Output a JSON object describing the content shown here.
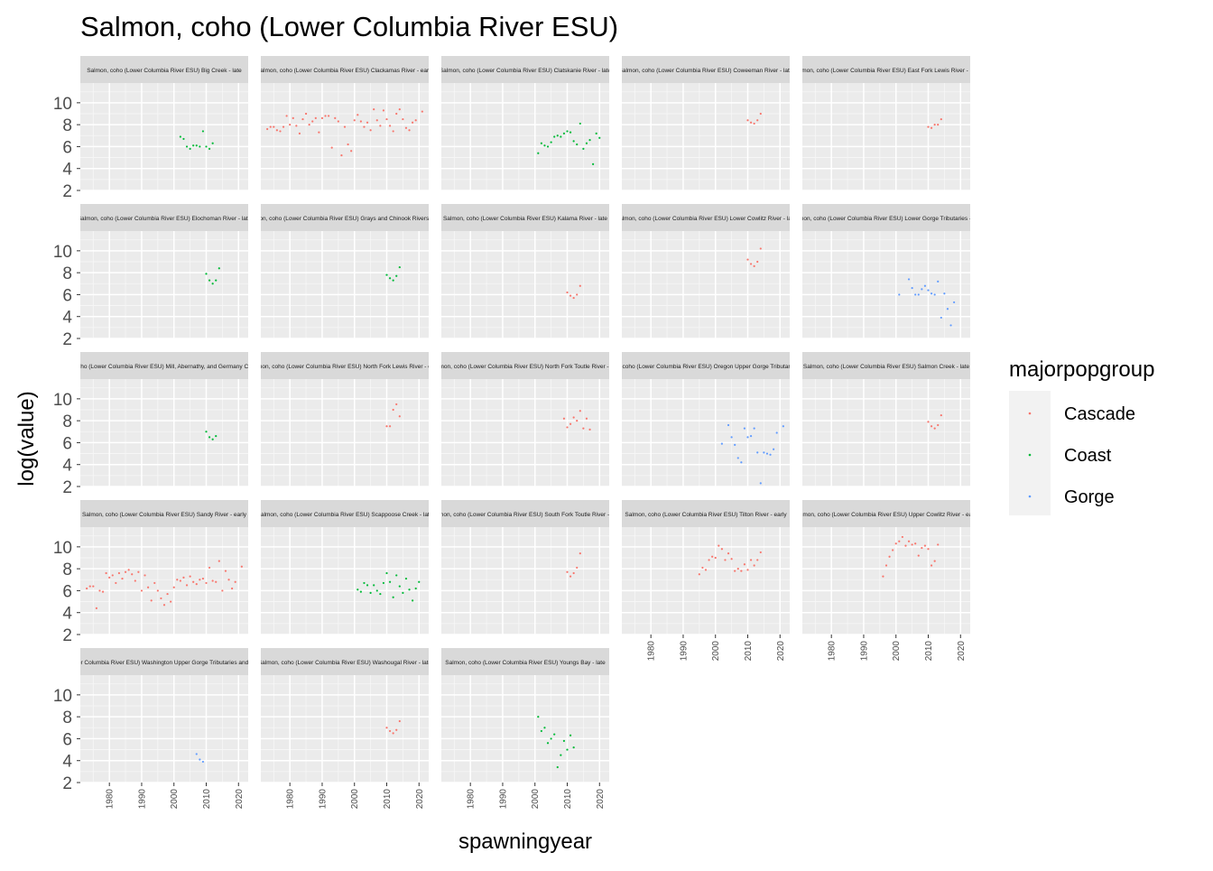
{
  "chart_data": {
    "type": "scatter",
    "title": "Salmon, coho (Lower Columbia River ESU)",
    "xlabel": "spawningyear",
    "ylabel": "log(value)",
    "xlim": [
      1971,
      2023
    ],
    "ylim": [
      2,
      11.8
    ],
    "xticks": [
      1980,
      1990,
      2000,
      2010,
      2020
    ],
    "yticks": [
      2,
      4,
      6,
      8,
      10
    ],
    "legend": {
      "title": "majorpopgroup",
      "position": "right",
      "entries": [
        {
          "name": "Cascade",
          "color": "#F8766D"
        },
        {
          "name": "Coast",
          "color": "#00BA38"
        },
        {
          "name": "Gorge",
          "color": "#619CFF"
        }
      ]
    },
    "facets": [
      {
        "label": "Salmon, coho (Lower Columbia River ESU) Big Creek - late",
        "group": "Coast",
        "x": [
          2002,
          2003,
          2004,
          2005,
          2006,
          2007,
          2008,
          2009,
          2010,
          2011,
          2012
        ],
        "y": [
          6.9,
          6.7,
          6.0,
          5.8,
          6.1,
          6.1,
          6.0,
          7.4,
          6.0,
          5.8,
          6.3
        ]
      },
      {
        "label": "Salmon, coho (Lower Columbia River ESU) Clackamas River - early",
        "group": "Cascade",
        "x": [
          1973,
          1974,
          1975,
          1976,
          1977,
          1978,
          1979,
          1980,
          1981,
          1982,
          1983,
          1984,
          1985,
          1986,
          1987,
          1988,
          1989,
          1990,
          1991,
          1992,
          1993,
          1994,
          1995,
          1996,
          1997,
          1998,
          1999,
          2000,
          2001,
          2002,
          2003,
          2004,
          2005,
          2006,
          2007,
          2008,
          2009,
          2010,
          2011,
          2012,
          2013,
          2014,
          2015,
          2016,
          2017,
          2018,
          2019,
          2021
        ],
        "y": [
          7.6,
          7.8,
          7.8,
          7.5,
          7.4,
          7.8,
          8.8,
          8.0,
          8.6,
          7.9,
          7.2,
          8.5,
          9.0,
          8.0,
          8.3,
          8.6,
          7.3,
          8.6,
          8.8,
          8.8,
          5.9,
          8.6,
          8.3,
          5.2,
          7.8,
          6.2,
          5.6,
          8.4,
          8.9,
          8.3,
          7.8,
          8.2,
          7.5,
          9.4,
          8.4,
          7.9,
          9.3,
          8.5,
          7.9,
          7.4,
          9.0,
          9.4,
          8.5,
          7.7,
          7.5,
          8.2,
          8.4,
          9.2
        ]
      },
      {
        "label": "Salmon, coho (Lower Columbia River ESU) Clatskanie River - late",
        "group": "Coast",
        "x": [
          2001,
          2002,
          2003,
          2004,
          2005,
          2006,
          2007,
          2008,
          2009,
          2010,
          2011,
          2012,
          2013,
          2014,
          2015,
          2016,
          2017,
          2018,
          2019,
          2020
        ],
        "y": [
          5.4,
          6.3,
          6.1,
          6.0,
          6.4,
          6.9,
          7.0,
          6.9,
          7.2,
          7.4,
          7.3,
          6.5,
          6.2,
          8.1,
          5.8,
          6.3,
          6.6,
          4.4,
          7.2,
          6.8
        ]
      },
      {
        "label": "Salmon, coho (Lower Columbia River ESU) Coweeman River - late",
        "group": "Cascade",
        "x": [
          2010,
          2011,
          2012,
          2013,
          2014
        ],
        "y": [
          8.4,
          8.2,
          8.1,
          8.4,
          9.0
        ]
      },
      {
        "label": "Salmon, coho (Lower Columbia River ESU) East Fork Lewis River - late",
        "group": "Cascade",
        "x": [
          2010,
          2011,
          2012,
          2013,
          2014
        ],
        "y": [
          7.8,
          7.7,
          8.0,
          8.0,
          8.5
        ]
      },
      {
        "label": "Salmon, coho (Lower Columbia River ESU) Elochoman River - late",
        "group": "Coast",
        "x": [
          2010,
          2011,
          2012,
          2013,
          2014
        ],
        "y": [
          7.9,
          7.3,
          7.0,
          7.3,
          8.4
        ]
      },
      {
        "label": "Salmon, coho (Lower Columbia River ESU) Grays and Chinook Rivers - late",
        "group": "Coast",
        "x": [
          2010,
          2011,
          2012,
          2013,
          2014
        ],
        "y": [
          7.8,
          7.5,
          7.3,
          7.7,
          8.5
        ]
      },
      {
        "label": "Salmon, coho (Lower Columbia River ESU) Kalama River - late",
        "group": "Cascade",
        "x": [
          2010,
          2011,
          2012,
          2013,
          2014
        ],
        "y": [
          6.2,
          5.9,
          5.7,
          6.0,
          6.8
        ]
      },
      {
        "label": "Salmon, coho (Lower Columbia River ESU) Lower Cowlitz River - late",
        "group": "Cascade",
        "x": [
          2010,
          2011,
          2012,
          2013,
          2014
        ],
        "y": [
          9.2,
          8.8,
          8.6,
          9.0,
          10.2
        ]
      },
      {
        "label": "Salmon, coho (Lower Columbia River ESU) Lower Gorge Tributaries - late",
        "group": "Gorge",
        "x": [
          2001,
          2004,
          2005,
          2006,
          2007,
          2008,
          2009,
          2010,
          2011,
          2012,
          2013,
          2014,
          2015,
          2016,
          2017,
          2018
        ],
        "y": [
          6.0,
          7.4,
          6.6,
          6.0,
          6.0,
          6.5,
          6.8,
          6.4,
          6.1,
          6.0,
          7.2,
          3.9,
          6.1,
          4.7,
          3.2,
          5.3
        ]
      },
      {
        "label": "Salmon, coho (Lower Columbia River ESU) Mill, Abernathy, and Germany Creeks - late",
        "group": "Coast",
        "x": [
          2010,
          2011,
          2012,
          2013
        ],
        "y": [
          7.0,
          6.5,
          6.3,
          6.6
        ]
      },
      {
        "label": "Salmon, coho (Lower Columbia River ESU) North Fork Lewis River - early",
        "group": "Cascade",
        "x": [
          2010,
          2011,
          2012,
          2013,
          2014
        ],
        "y": [
          7.5,
          7.5,
          9.0,
          9.5,
          8.4
        ]
      },
      {
        "label": "Salmon, coho (Lower Columbia River ESU) North Fork Toutle River - late",
        "group": "Cascade",
        "x": [
          2009,
          2010,
          2011,
          2012,
          2013,
          2014,
          2015,
          2016,
          2017
        ],
        "y": [
          8.2,
          7.4,
          7.7,
          8.3,
          8.0,
          8.9,
          7.3,
          8.2,
          7.2
        ]
      },
      {
        "label": "Salmon, coho (Lower Columbia River ESU) Oregon Upper Gorge Tributaries - late",
        "group": "Gorge",
        "x": [
          2002,
          2004,
          2005,
          2006,
          2007,
          2008,
          2009,
          2010,
          2011,
          2012,
          2013,
          2014,
          2015,
          2016,
          2017,
          2018,
          2019,
          2021
        ],
        "y": [
          5.9,
          7.6,
          6.5,
          5.8,
          4.6,
          4.2,
          7.3,
          6.5,
          6.6,
          7.3,
          5.1,
          2.3,
          5.1,
          5.0,
          4.9,
          5.4,
          6.9,
          7.5
        ]
      },
      {
        "label": "Salmon, coho (Lower Columbia River ESU) Salmon Creek - late",
        "group": "Cascade",
        "x": [
          2010,
          2011,
          2012,
          2013,
          2014
        ],
        "y": [
          7.9,
          7.5,
          7.3,
          7.6,
          8.5
        ]
      },
      {
        "label": "Salmon, coho (Lower Columbia River ESU) Sandy River - early",
        "group": "Cascade",
        "x": [
          1973,
          1974,
          1975,
          1976,
          1977,
          1978,
          1979,
          1980,
          1981,
          1982,
          1983,
          1984,
          1985,
          1986,
          1987,
          1988,
          1989,
          1990,
          1991,
          1992,
          1993,
          1994,
          1995,
          1996,
          1997,
          1998,
          1999,
          2000,
          2001,
          2002,
          2003,
          2004,
          2005,
          2006,
          2007,
          2008,
          2009,
          2010,
          2011,
          2012,
          2013,
          2014,
          2015,
          2016,
          2017,
          2018,
          2019,
          2021
        ],
        "y": [
          6.2,
          6.4,
          6.4,
          4.4,
          6.0,
          5.9,
          7.6,
          7.2,
          7.4,
          6.7,
          7.6,
          7.1,
          7.7,
          7.9,
          7.5,
          6.9,
          7.7,
          6.0,
          7.4,
          6.3,
          5.1,
          6.7,
          6.0,
          5.3,
          4.7,
          5.7,
          5.0,
          6.3,
          7.0,
          6.9,
          7.2,
          6.5,
          7.3,
          6.8,
          6.6,
          7.0,
          7.1,
          6.7,
          8.1,
          6.9,
          6.8,
          8.7,
          6.0,
          7.8,
          7.0,
          6.2,
          6.8,
          8.2
        ]
      },
      {
        "label": "Salmon, coho (Lower Columbia River ESU) Scappoose Creek - late",
        "group": "Coast",
        "x": [
          2001,
          2002,
          2003,
          2004,
          2005,
          2006,
          2007,
          2008,
          2009,
          2010,
          2011,
          2012,
          2013,
          2014,
          2015,
          2016,
          2017,
          2018,
          2019,
          2020
        ],
        "y": [
          6.1,
          5.9,
          6.7,
          6.5,
          5.8,
          6.5,
          6.0,
          5.7,
          6.7,
          7.6,
          6.8,
          5.4,
          7.4,
          6.4,
          5.8,
          7.1,
          6.1,
          5.1,
          6.2,
          6.8
        ]
      },
      {
        "label": "Salmon, coho (Lower Columbia River ESU) South Fork Toutle River - late",
        "group": "Cascade",
        "x": [
          2010,
          2011,
          2012,
          2013,
          2014
        ],
        "y": [
          7.7,
          7.3,
          7.6,
          8.1,
          9.4
        ]
      },
      {
        "label": "Salmon, coho (Lower Columbia River ESU) Tilton River - early",
        "group": "Cascade",
        "x": [
          1995,
          1996,
          1997,
          1998,
          1999,
          2000,
          2001,
          2002,
          2003,
          2004,
          2005,
          2006,
          2007,
          2008,
          2009,
          2010,
          2011,
          2012,
          2013,
          2014
        ],
        "y": [
          7.5,
          8.1,
          7.9,
          8.8,
          9.1,
          9.0,
          10.1,
          9.8,
          8.8,
          9.4,
          8.9,
          7.8,
          8.0,
          7.8,
          8.4,
          7.9,
          8.8,
          8.3,
          8.8,
          9.5
        ]
      },
      {
        "label": "Salmon, coho (Lower Columbia River ESU) Upper Cowlitz River - early",
        "group": "Cascade",
        "x": [
          1996,
          1997,
          1998,
          1999,
          2000,
          2001,
          2002,
          2003,
          2004,
          2005,
          2006,
          2007,
          2008,
          2009,
          2010,
          2011,
          2012,
          2013
        ],
        "y": [
          7.3,
          8.3,
          9.1,
          9.7,
          10.3,
          10.5,
          10.9,
          10.1,
          10.5,
          10.2,
          10.3,
          9.2,
          9.9,
          10.1,
          9.8,
          8.3,
          8.7,
          10.2
        ]
      },
      {
        "label": "Salmon, coho (Lower Columbia River ESU) Washington Upper Gorge Tributaries and White Salmon - late",
        "group": "Gorge",
        "x": [
          2007,
          2008,
          2009
        ],
        "y": [
          4.6,
          4.1,
          3.9
        ]
      },
      {
        "label": "Salmon, coho (Lower Columbia River ESU) Washougal River - late",
        "group": "Cascade",
        "x": [
          2010,
          2011,
          2012,
          2013,
          2014
        ],
        "y": [
          7.0,
          6.7,
          6.5,
          6.8,
          7.6
        ]
      },
      {
        "label": "Salmon, coho (Lower Columbia River ESU) Youngs Bay - late",
        "group": "Coast",
        "x": [
          2001,
          2002,
          2003,
          2004,
          2005,
          2006,
          2007,
          2008,
          2009,
          2010,
          2011,
          2012
        ],
        "y": [
          8.0,
          6.7,
          7.0,
          5.6,
          6.0,
          6.4,
          3.4,
          4.5,
          5.8,
          5.0,
          6.3,
          5.2
        ]
      }
    ]
  }
}
